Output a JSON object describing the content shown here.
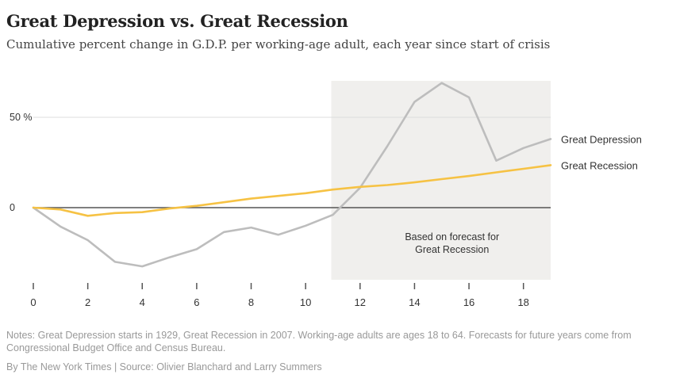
{
  "header": {
    "title": "Great Depression vs. Great Recession",
    "subtitle": "Cumulative percent change in G.D.P. per working-age adult, each year since start of crisis"
  },
  "footer": {
    "notes": "Notes: Great Depression starts in 1929, Great Recession in 2007. Working-age adults are ages 18 to 64. Forecasts for future years come from Congressional Budget Office and Census Bureau.",
    "credit": "By The New York Times | Source: Olivier Blanchard and Larry Summers"
  },
  "colors": {
    "depression": "#bdbdbd",
    "recession": "#f6c244",
    "forecast_band": "#f0efed",
    "zero_line": "#555555",
    "grid": "#dddddd"
  },
  "chart_data": {
    "type": "line",
    "title": "Great Depression vs. Great Recession",
    "subtitle": "Cumulative percent change in G.D.P. per working-age adult, each year since start of crisis",
    "xlabel": "",
    "ylabel": "",
    "xlim": [
      0,
      19
    ],
    "ylim": [
      -40,
      70
    ],
    "x_ticks": [
      0,
      2,
      4,
      6,
      8,
      10,
      12,
      14,
      16,
      18
    ],
    "y_ticks": [
      {
        "value": 50,
        "label": "50 %"
      },
      {
        "value": 0,
        "label": "0"
      }
    ],
    "forecast_region": {
      "x_start": 11,
      "x_end": 19,
      "label_lines": [
        "Based on forecast for",
        "Great Recession"
      ]
    },
    "series": [
      {
        "name": "Great Depression",
        "color_key": "depression",
        "x": [
          0,
          1,
          2,
          3,
          4,
          5,
          6,
          7,
          8,
          9,
          10,
          11,
          12,
          13,
          14,
          15,
          16,
          17,
          18,
          19
        ],
        "values": [
          0,
          -10.5,
          -18,
          -30,
          -32.5,
          -27.5,
          -23,
          -13.5,
          -11,
          -15,
          -10,
          -4,
          11,
          34,
          58.5,
          69,
          61,
          26,
          33,
          38
        ]
      },
      {
        "name": "Great Recession",
        "color_key": "recession",
        "x": [
          0,
          1,
          2,
          3,
          4,
          5,
          6,
          7,
          8,
          9,
          10,
          11,
          12,
          13,
          14,
          15,
          16,
          17,
          18,
          19
        ],
        "values": [
          0,
          -1,
          -4.5,
          -3,
          -2.5,
          -0.5,
          1,
          3,
          5,
          6.5,
          8,
          10,
          11.5,
          12.5,
          14,
          15.8,
          17.5,
          19.5,
          21.5,
          23.5
        ]
      }
    ]
  }
}
